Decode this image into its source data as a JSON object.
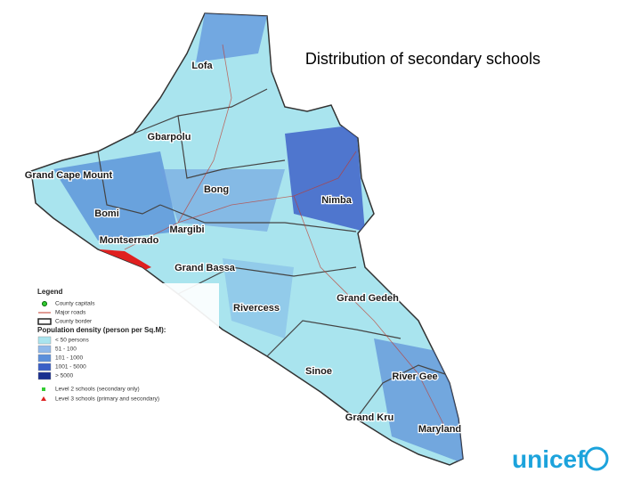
{
  "title": "Distribution of secondary schools",
  "counties": [
    "Lofa",
    "Gbarpolu",
    "Grand Cape Mount",
    "Bong",
    "Nimba",
    "Bomi",
    "Margibi",
    "Montserrado",
    "Grand Bassa",
    "Grand Gedeh",
    "Rivercess",
    "Sinoe",
    "River Gee",
    "Grand Kru",
    "Maryland"
  ],
  "legend": {
    "title": "Legend",
    "items": [
      "County capitals",
      "Major roads",
      "County border"
    ],
    "density_title": "Population density (person per Sq.M):",
    "density": [
      "< 50 persons",
      "51 - 100",
      "101 - 1000",
      "1001 - 5000",
      "> 5000"
    ],
    "schools": [
      "Level 2 schools (secondary only)",
      "Level 3 schools (primary and secondary)"
    ]
  },
  "logo": "unicef"
}
